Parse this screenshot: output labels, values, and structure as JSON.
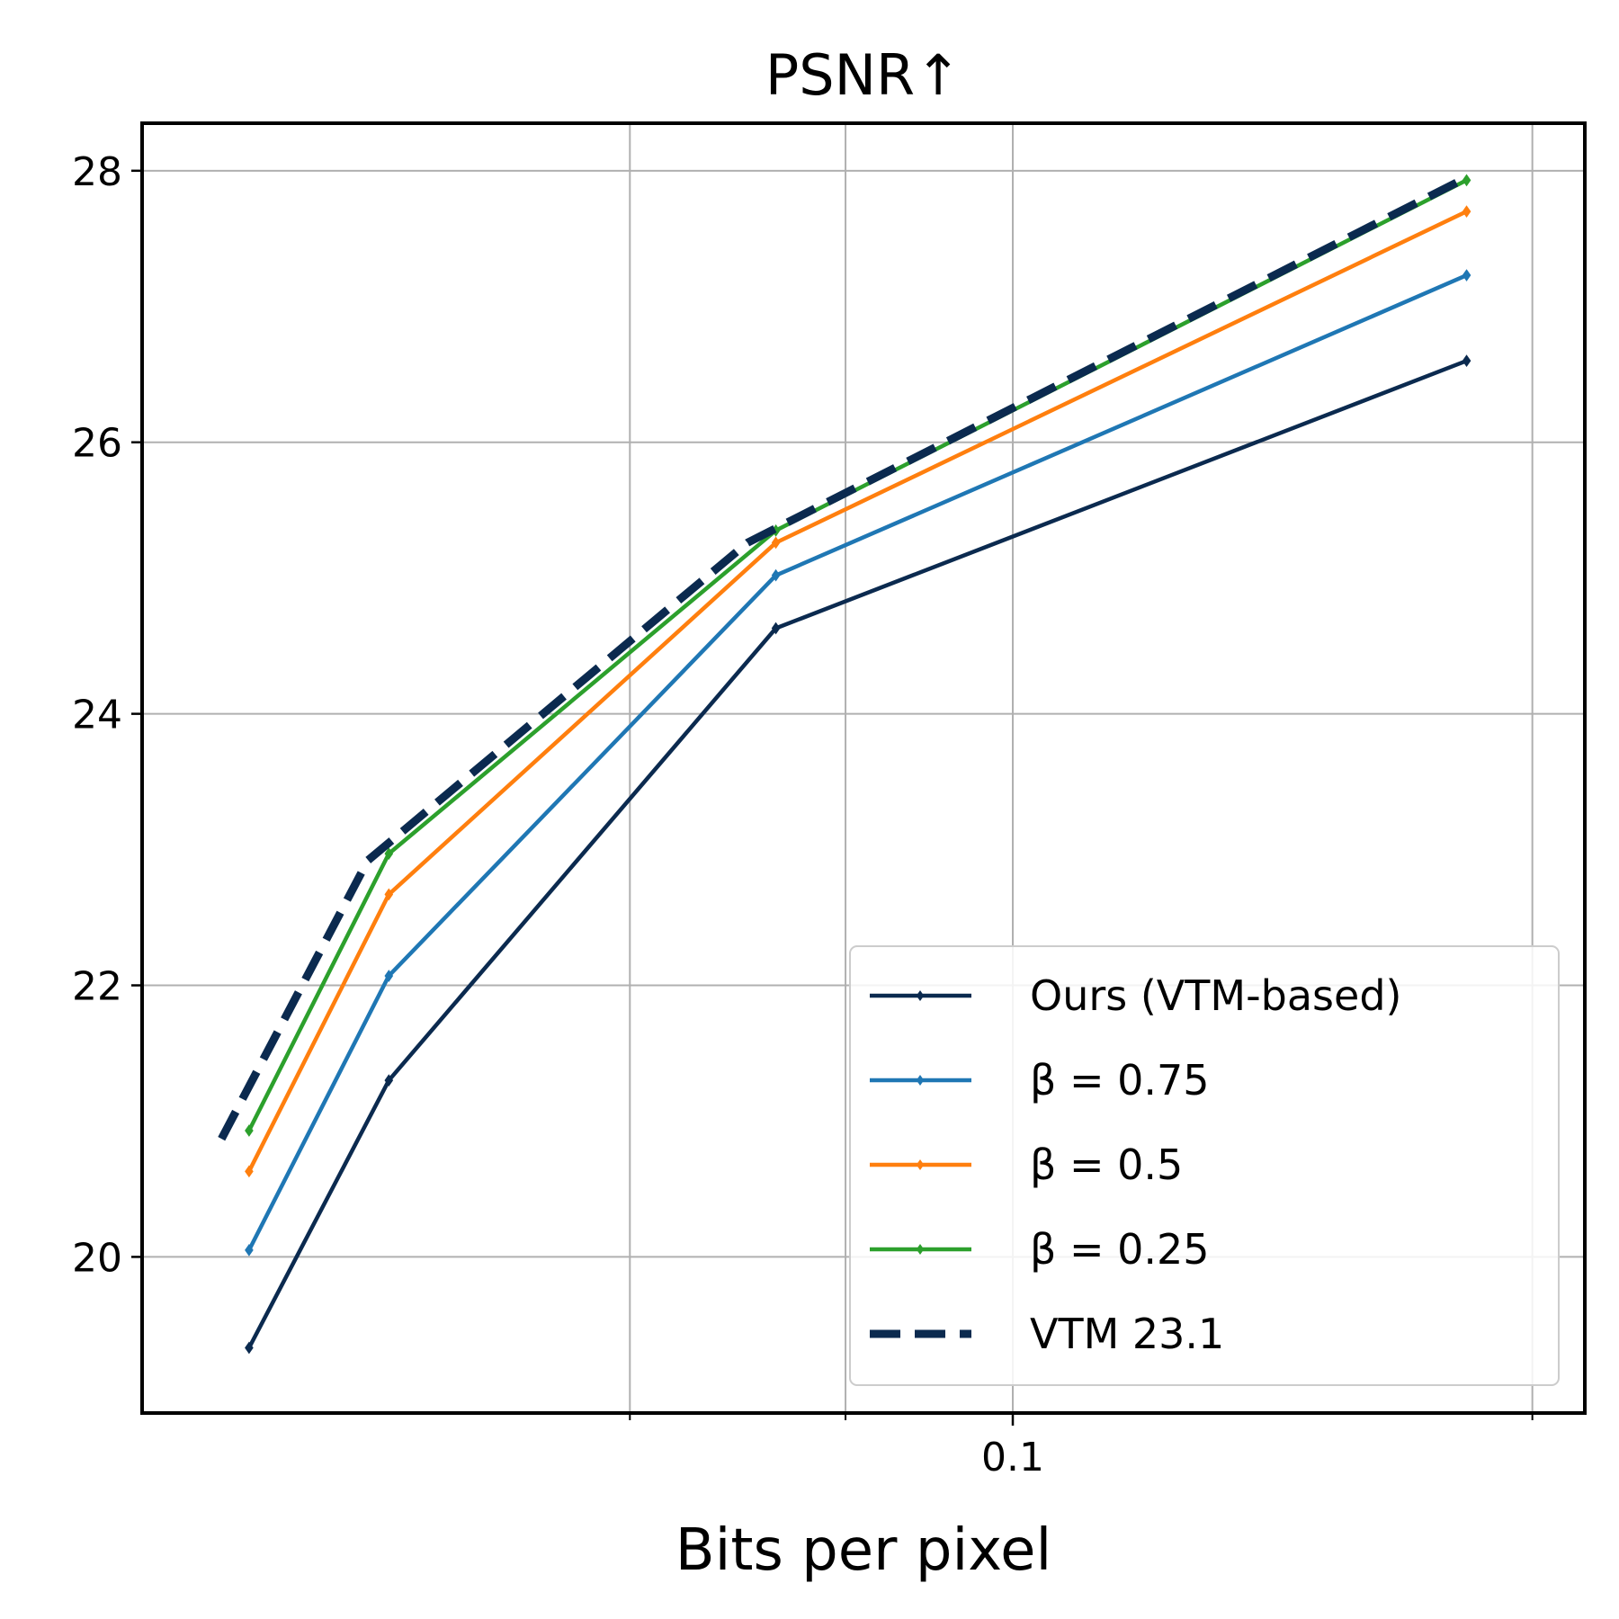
{
  "chart_data": {
    "type": "line",
    "title": "PSNR↑",
    "xlabel": "Bits per pixel",
    "ylabel": "",
    "xscale": "log",
    "xlim": [
      0.0313,
      0.2145
    ],
    "ylim": [
      18.85,
      28.35
    ],
    "xticks": [
      {
        "value": 0.1,
        "label": "0.1"
      }
    ],
    "x_minor_gridlines": [
      0.06,
      0.08,
      0.1,
      0.2
    ],
    "yticks": [
      20,
      22,
      24,
      26,
      28
    ],
    "grid": true,
    "legend_position": "bottom-right",
    "series": [
      {
        "name": "Ours (VTM-based)",
        "color": "#0b2a4f",
        "dashed": false,
        "markers": true,
        "x": [
          0.0361,
          0.0435,
          0.0729,
          0.1832
        ],
        "y": [
          19.33,
          21.3,
          24.63,
          26.6
        ]
      },
      {
        "name": "β = 0.75",
        "color": "#1f77b4",
        "dashed": false,
        "markers": true,
        "x": [
          0.0361,
          0.0435,
          0.0729,
          0.1832
        ],
        "y": [
          20.05,
          22.07,
          25.02,
          27.23
        ]
      },
      {
        "name": "β = 0.5",
        "color": "#ff7f0e",
        "dashed": false,
        "markers": true,
        "x": [
          0.0361,
          0.0435,
          0.0729,
          0.1832
        ],
        "y": [
          20.63,
          22.67,
          25.26,
          27.7
        ]
      },
      {
        "name": "β = 0.25",
        "color": "#2ca02c",
        "dashed": false,
        "markers": true,
        "x": [
          0.0361,
          0.0435,
          0.0729,
          0.1832
        ],
        "y": [
          20.93,
          22.97,
          25.35,
          27.93
        ]
      },
      {
        "name": "VTM 23.1",
        "color": "#0b2a4f",
        "dashed": true,
        "markers": false,
        "x": [
          0.0348,
          0.0423,
          0.0702,
          0.1832
        ],
        "y": [
          20.87,
          22.92,
          25.26,
          27.95
        ]
      }
    ]
  }
}
